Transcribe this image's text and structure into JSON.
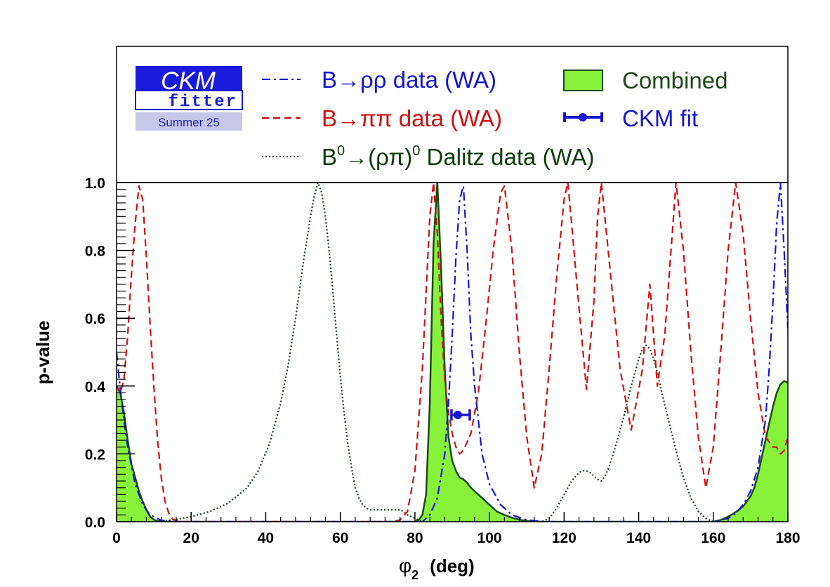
{
  "chart_data": {
    "type": "line",
    "xlabel": "φ2 (deg)",
    "xlabel_symbol": "φ",
    "xlabel_subscript": "2",
    "xlabel_unit": "(deg)",
    "ylabel": "p-value",
    "xlim": [
      0,
      180
    ],
    "ylim": [
      0,
      1.0
    ],
    "x_ticks": [
      "0",
      "20",
      "40",
      "60",
      "80",
      "100",
      "120",
      "140",
      "160",
      "180"
    ],
    "y_ticks": [
      "0.0",
      "0.2",
      "0.4",
      "0.6",
      "0.8",
      "1.0"
    ],
    "grid": false,
    "legend_placement": "top",
    "logo": {
      "line1": "CKM",
      "line2": "fitter",
      "edition": "Summer 25"
    },
    "legend": {
      "rho_rho": {
        "prefix": "B",
        "arrow": "→",
        "particles": "ρρ",
        "suffix": " data (WA)"
      },
      "pi_pi": {
        "prefix": "B",
        "arrow": "→",
        "particles": "ππ",
        "suffix": " data (WA)"
      },
      "dalitz": {
        "prefix": "B",
        "sup": "0",
        "arrow": "→",
        "middle": "(ρπ)",
        "sup2": "0",
        "suffix": " Dalitz data (WA)"
      },
      "combined": "Combined",
      "ckm_fit": "CKM fit"
    },
    "colors": {
      "rho_rho": "#1515d0",
      "pi_pi": "#cc1111",
      "dalitz": "#0b3d0b",
      "combined_fill": "#88f23b",
      "combined_line": "#1b4a14",
      "ckm_fit": "#1515d0",
      "legend_combined_text": "#1b4a14",
      "legend_ckm_text": "#1515d0"
    },
    "series": [
      {
        "id": "rho_rho",
        "style": "dash-dot",
        "x": [
          0,
          1,
          2,
          3,
          5,
          7,
          9,
          12,
          16,
          20,
          60,
          78,
          82,
          84,
          86,
          88,
          89,
          90,
          91,
          92,
          93,
          94,
          95,
          96,
          98,
          100,
          103,
          106,
          110,
          115,
          150,
          160,
          164,
          166,
          168,
          170,
          172,
          174,
          175,
          176,
          177,
          178,
          179,
          180
        ],
        "y": [
          0.5,
          0.39,
          0.3,
          0.22,
          0.11,
          0.05,
          0.02,
          0.004,
          0.0,
          0.0,
          0.0,
          0.0,
          0.0,
          0.02,
          0.07,
          0.2,
          0.35,
          0.55,
          0.78,
          0.95,
          0.99,
          0.8,
          0.55,
          0.4,
          0.2,
          0.11,
          0.05,
          0.02,
          0.005,
          0.0,
          0.0,
          0.0,
          0.01,
          0.025,
          0.05,
          0.09,
          0.16,
          0.3,
          0.45,
          0.65,
          0.88,
          1.0,
          0.8,
          0.57
        ]
      },
      {
        "id": "pi_pi",
        "style": "dashed",
        "x": [
          0,
          1,
          2,
          3,
          4,
          5,
          6,
          7,
          8,
          9,
          10,
          11,
          12,
          13,
          14,
          15,
          17,
          20,
          70,
          74,
          76,
          78,
          80,
          82,
          84,
          85,
          86,
          87,
          88,
          89,
          90,
          91,
          92,
          93,
          95,
          97,
          99,
          101,
          103,
          104,
          106,
          108,
          110,
          112,
          114,
          116,
          118,
          120,
          121,
          122,
          124,
          126,
          128,
          129,
          130,
          132,
          135,
          138,
          141,
          143,
          145,
          147,
          149,
          150,
          152,
          154,
          156,
          158,
          160,
          162,
          164,
          166,
          168,
          170,
          172,
          174,
          176,
          177,
          178,
          179,
          180
        ],
        "y": [
          0.4,
          0.38,
          0.42,
          0.55,
          0.73,
          0.88,
          0.99,
          0.95,
          0.78,
          0.58,
          0.4,
          0.24,
          0.13,
          0.06,
          0.025,
          0.008,
          0.0,
          0.0,
          0.0,
          0.0,
          0.005,
          0.03,
          0.15,
          0.45,
          0.9,
          1.0,
          0.85,
          0.6,
          0.42,
          0.32,
          0.26,
          0.22,
          0.2,
          0.21,
          0.26,
          0.38,
          0.58,
          0.8,
          0.97,
          0.99,
          0.8,
          0.5,
          0.25,
          0.1,
          0.2,
          0.45,
          0.72,
          0.95,
          1.0,
          0.88,
          0.63,
          0.39,
          0.65,
          0.9,
          1.0,
          0.78,
          0.45,
          0.27,
          0.45,
          0.7,
          0.4,
          0.55,
          0.85,
          1.0,
          0.8,
          0.5,
          0.25,
          0.1,
          0.22,
          0.5,
          0.8,
          1.0,
          0.85,
          0.6,
          0.38,
          0.25,
          0.22,
          0.22,
          0.2,
          0.21,
          0.25
        ]
      },
      {
        "id": "dalitz",
        "style": "dotted",
        "x": [
          0,
          5,
          10,
          15,
          20,
          25,
          30,
          35,
          38,
          41,
          44,
          46,
          48,
          50,
          52,
          53,
          54,
          55,
          56,
          57,
          58,
          59,
          60,
          61,
          62,
          63,
          64,
          65,
          66,
          67,
          68,
          69,
          70,
          72,
          74,
          76,
          77,
          78,
          80,
          82,
          85,
          90,
          95,
          100,
          105,
          110,
          114,
          116,
          118,
          120,
          122,
          124,
          125,
          126,
          127,
          128,
          129,
          130,
          131,
          132,
          134,
          136,
          138,
          140,
          141,
          142,
          143,
          144,
          145,
          146,
          148,
          150,
          152,
          154,
          156,
          158,
          160,
          165,
          170,
          175,
          180
        ],
        "y": [
          0.0,
          0.0,
          0.0,
          0.005,
          0.015,
          0.03,
          0.055,
          0.1,
          0.15,
          0.23,
          0.35,
          0.46,
          0.6,
          0.76,
          0.9,
          0.96,
          1.0,
          0.97,
          0.9,
          0.8,
          0.68,
          0.55,
          0.43,
          0.32,
          0.23,
          0.16,
          0.1,
          0.07,
          0.05,
          0.04,
          0.035,
          0.035,
          0.035,
          0.035,
          0.035,
          0.035,
          0.03,
          0.02,
          0.01,
          0.0,
          0.0,
          0.0,
          0.0,
          0.0,
          0.0,
          0.0,
          0.0,
          0.01,
          0.04,
          0.08,
          0.12,
          0.145,
          0.15,
          0.15,
          0.145,
          0.135,
          0.125,
          0.12,
          0.135,
          0.16,
          0.23,
          0.31,
          0.4,
          0.48,
          0.51,
          0.52,
          0.51,
          0.48,
          0.44,
          0.39,
          0.3,
          0.21,
          0.13,
          0.07,
          0.03,
          0.01,
          0.0,
          0.0,
          0.0,
          0.0,
          0.0
        ]
      },
      {
        "id": "combined",
        "style": "filled",
        "x": [
          0,
          1,
          2,
          3,
          4,
          5,
          6,
          7,
          8,
          9,
          10,
          11,
          12,
          14,
          20,
          75,
          78,
          80,
          81,
          82,
          83,
          84,
          85,
          86,
          87,
          88,
          89,
          90,
          91,
          92,
          93,
          94,
          95,
          96,
          98,
          100,
          102,
          104,
          106,
          108,
          110,
          112,
          116,
          155,
          160,
          162,
          164,
          166,
          168,
          170,
          171,
          172,
          173,
          174,
          175,
          176,
          177,
          178,
          179,
          180
        ],
        "y": [
          0.4,
          0.38,
          0.32,
          0.24,
          0.17,
          0.13,
          0.09,
          0.06,
          0.035,
          0.015,
          0.006,
          0.002,
          0.0,
          0.0,
          0.0,
          0.0,
          0.0,
          0.0,
          0.005,
          0.02,
          0.08,
          0.35,
          0.82,
          1.0,
          0.75,
          0.45,
          0.25,
          0.18,
          0.15,
          0.13,
          0.125,
          0.115,
          0.1,
          0.09,
          0.07,
          0.05,
          0.03,
          0.02,
          0.012,
          0.006,
          0.002,
          0.0,
          0.0,
          0.0,
          0.0,
          0.005,
          0.015,
          0.028,
          0.045,
          0.075,
          0.1,
          0.14,
          0.19,
          0.24,
          0.29,
          0.34,
          0.38,
          0.405,
          0.415,
          0.41
        ]
      }
    ],
    "ckm_fit_point": {
      "x": 91.5,
      "y": 0.315,
      "xerr_low": 1.7,
      "xerr_high": 3.2
    }
  }
}
